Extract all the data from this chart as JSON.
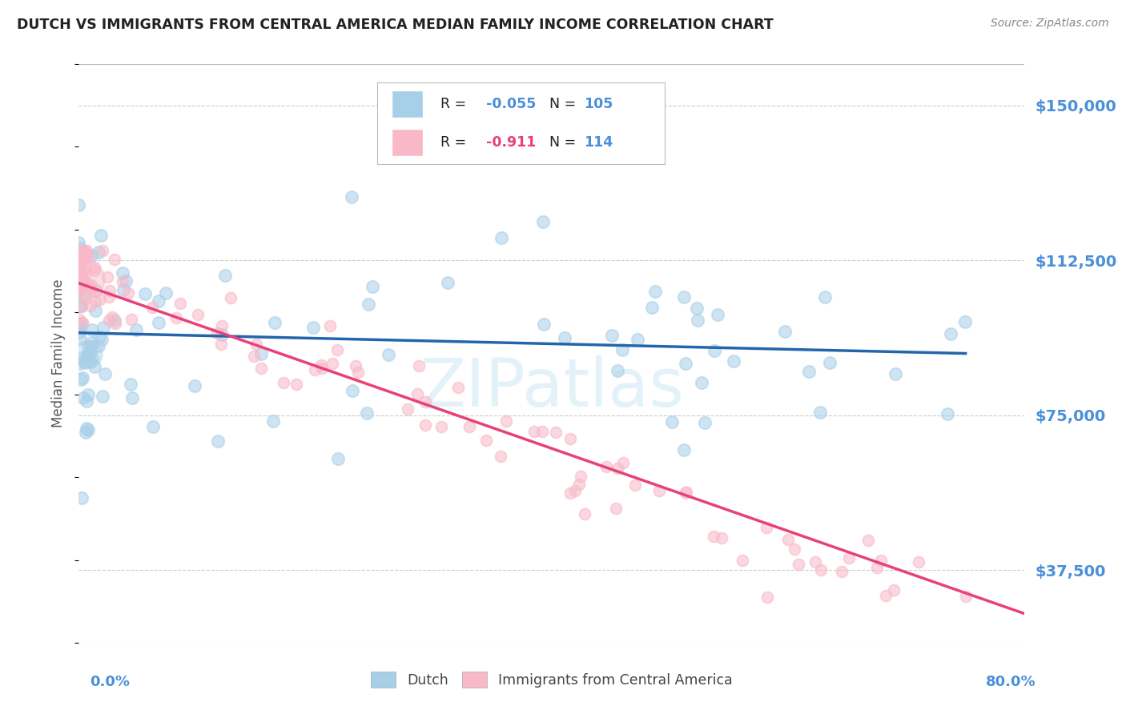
{
  "title": "DUTCH VS IMMIGRANTS FROM CENTRAL AMERICA MEDIAN FAMILY INCOME CORRELATION CHART",
  "source": "Source: ZipAtlas.com",
  "ylabel": "Median Family Income",
  "yticks": [
    37500,
    75000,
    112500,
    150000
  ],
  "ytick_labels": [
    "$37,500",
    "$75,000",
    "$112,500",
    "$150,000"
  ],
  "watermark": "ZIPatlas",
  "legend_blue_R": "-0.055",
  "legend_blue_N": "105",
  "legend_pink_R": "-0.911",
  "legend_pink_N": "114",
  "blue_color": "#a8cfe8",
  "pink_color": "#f9b8c8",
  "blue_line_color": "#2166ac",
  "pink_line_color": "#e8417a",
  "axis_color": "#4a90d9",
  "title_color": "#222222",
  "source_color": "#888888",
  "grid_color": "#cccccc",
  "ylabel_color": "#555555",
  "xmin": 0.0,
  "xmax": 80.0,
  "ymin": 20000,
  "ymax": 160000,
  "blue_line_x0": 0.0,
  "blue_line_x1": 75.0,
  "blue_line_y0": 95000,
  "blue_line_y1": 90000,
  "pink_line_x0": 0.0,
  "pink_line_x1": 80.0,
  "pink_line_y0": 107000,
  "pink_line_y1": 27000
}
